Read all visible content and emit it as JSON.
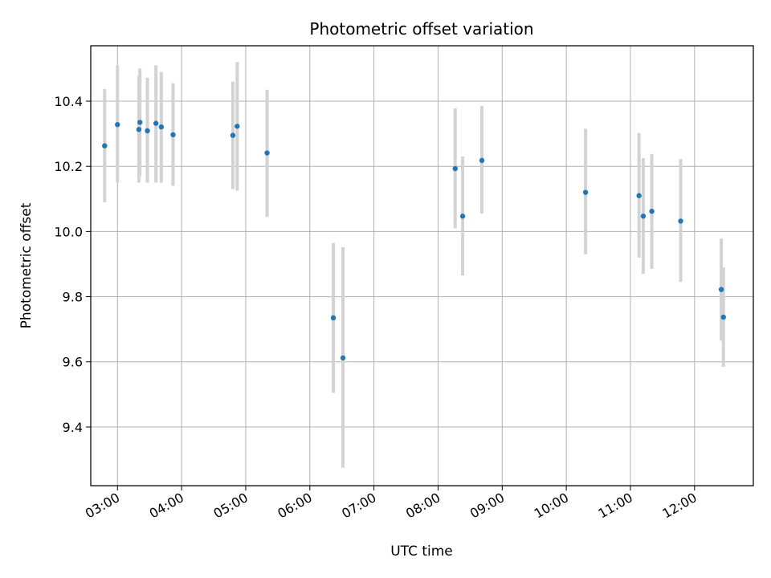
{
  "chart_data": {
    "type": "scatter",
    "title": "Photometric offset variation",
    "xlabel": "UTC time",
    "ylabel": "Photometric offset",
    "grid": true,
    "x_axis": {
      "kind": "time",
      "range": [
        "02:35",
        "12:55"
      ],
      "ticks": [
        "03:00",
        "04:00",
        "05:00",
        "06:00",
        "07:00",
        "08:00",
        "09:00",
        "10:00",
        "11:00",
        "12:00"
      ]
    },
    "y_axis": {
      "range": [
        9.22,
        10.57
      ],
      "ticks": [
        9.4,
        9.6,
        9.8,
        10.0,
        10.2,
        10.4
      ],
      "tick_labels": [
        "9.4",
        "9.6",
        "9.8",
        "10.0",
        "10.2",
        "10.4"
      ]
    },
    "colors": {
      "point": "#1f77b4",
      "errorbar": "#d3d3d3",
      "grid": "#b0b0b0"
    },
    "points": [
      {
        "x": "02:48",
        "y": 10.263,
        "ylow": 10.09,
        "yhigh": 10.437
      },
      {
        "x": "03:00",
        "y": 10.328,
        "ylow": 10.15,
        "yhigh": 10.51
      },
      {
        "x": "03:20",
        "y": 10.313,
        "ylow": 10.15,
        "yhigh": 10.478
      },
      {
        "x": "03:21",
        "y": 10.335,
        "ylow": 10.17,
        "yhigh": 10.5
      },
      {
        "x": "03:28",
        "y": 10.309,
        "ylow": 10.15,
        "yhigh": 10.472
      },
      {
        "x": "03:36",
        "y": 10.332,
        "ylow": 10.15,
        "yhigh": 10.51
      },
      {
        "x": "03:41",
        "y": 10.321,
        "ylow": 10.15,
        "yhigh": 10.49
      },
      {
        "x": "03:52",
        "y": 10.297,
        "ylow": 10.14,
        "yhigh": 10.455
      },
      {
        "x": "04:48",
        "y": 10.295,
        "ylow": 10.13,
        "yhigh": 10.46
      },
      {
        "x": "04:52",
        "y": 10.323,
        "ylow": 10.125,
        "yhigh": 10.52
      },
      {
        "x": "05:20",
        "y": 10.241,
        "ylow": 10.045,
        "yhigh": 10.435
      },
      {
        "x": "06:22",
        "y": 9.735,
        "ylow": 9.505,
        "yhigh": 9.965
      },
      {
        "x": "06:31",
        "y": 9.612,
        "ylow": 9.275,
        "yhigh": 9.952
      },
      {
        "x": "08:16",
        "y": 10.193,
        "ylow": 10.01,
        "yhigh": 10.378
      },
      {
        "x": "08:23",
        "y": 10.047,
        "ylow": 9.865,
        "yhigh": 10.23
      },
      {
        "x": "08:41",
        "y": 10.218,
        "ylow": 10.055,
        "yhigh": 10.385
      },
      {
        "x": "10:18",
        "y": 10.12,
        "ylow": 9.93,
        "yhigh": 10.315
      },
      {
        "x": "11:08",
        "y": 10.11,
        "ylow": 9.92,
        "yhigh": 10.302
      },
      {
        "x": "11:12",
        "y": 10.047,
        "ylow": 9.87,
        "yhigh": 10.225
      },
      {
        "x": "11:20",
        "y": 10.062,
        "ylow": 9.885,
        "yhigh": 10.238
      },
      {
        "x": "11:47",
        "y": 10.032,
        "ylow": 9.845,
        "yhigh": 10.222
      },
      {
        "x": "12:25",
        "y": 9.822,
        "ylow": 9.665,
        "yhigh": 9.978
      },
      {
        "x": "12:27",
        "y": 9.737,
        "ylow": 9.585,
        "yhigh": 9.89
      }
    ]
  }
}
